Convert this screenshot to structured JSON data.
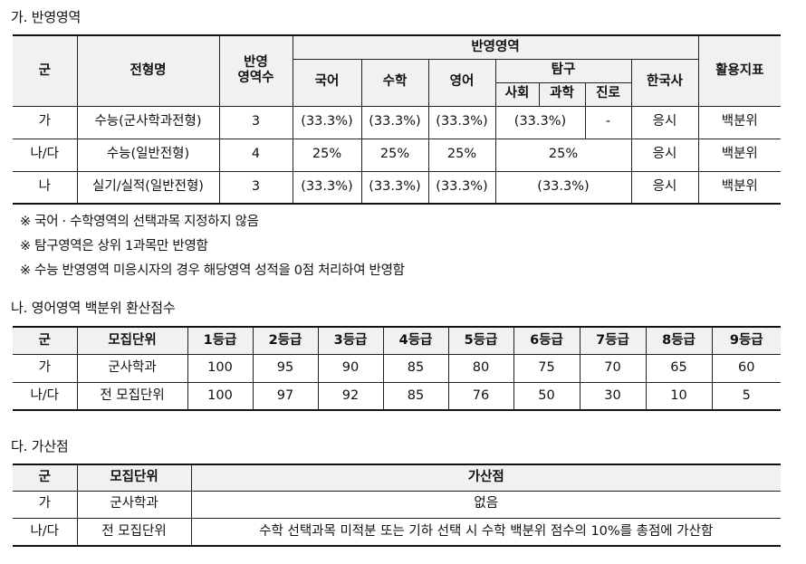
{
  "section_a": {
    "title": "가. 반영영역",
    "headers": {
      "group": "군",
      "name": "전형명",
      "count": "반영\n영역수",
      "areas": "반영영역",
      "korean": "국어",
      "math": "수학",
      "english": "영어",
      "inquiry": "탐구",
      "social": "사회",
      "science": "과학",
      "career": "진로",
      "history": "한국사",
      "indicator": "활용지표"
    },
    "rows": [
      {
        "group": "가",
        "name": "수능(군사학과전형)",
        "count": "3",
        "korean": "(33.3%)",
        "math": "(33.3%)",
        "english": "(33.3%)",
        "inquiry_ss": "(33.3%)",
        "career": "-",
        "history": "응시",
        "indicator": "백분위"
      },
      {
        "group": "나/다",
        "name": "수능(일반전형)",
        "count": "4",
        "korean": "25%",
        "math": "25%",
        "english": "25%",
        "inquiry": "25%",
        "history": "응시",
        "indicator": "백분위"
      },
      {
        "group": "나",
        "name": "실기/실적(일반전형)",
        "count": "3",
        "korean": "(33.3%)",
        "math": "(33.3%)",
        "english": "(33.3%)",
        "inquiry": "(33.3%)",
        "history": "응시",
        "indicator": "백분위"
      }
    ],
    "notes": [
      "※ 국어 · 수학영역의 선택과목 지정하지 않음",
      "※ 탐구영역은 상위 1과목만 반영함",
      "※ 수능 반영영역 미응시자의 경우 해당영역 성적을 0점 처리하여 반영함"
    ]
  },
  "section_b": {
    "title": "나. 영어영역 백분위 환산점수",
    "headers": [
      "군",
      "모집단위",
      "1등급",
      "2등급",
      "3등급",
      "4등급",
      "5등급",
      "6등급",
      "7등급",
      "8등급",
      "9등급"
    ],
    "rows": [
      [
        "가",
        "군사학과",
        "100",
        "95",
        "90",
        "85",
        "80",
        "75",
        "70",
        "65",
        "60"
      ],
      [
        "나/다",
        "전 모집단위",
        "100",
        "97",
        "92",
        "85",
        "76",
        "50",
        "30",
        "10",
        "5"
      ]
    ]
  },
  "section_c": {
    "title": "다. 가산점",
    "headers": [
      "군",
      "모집단위",
      "가산점"
    ],
    "rows": [
      [
        "가",
        "군사학과",
        "없음"
      ],
      [
        "나/다",
        "전 모집단위",
        "수학 선택과목 미적분 또는 기하 선택 시 수학 백분위 점수의 10%를 총점에 가산함"
      ]
    ]
  }
}
